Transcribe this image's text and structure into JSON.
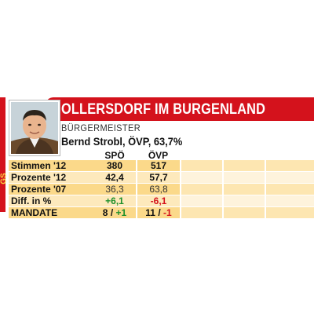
{
  "title": "OLLERSDORF IM BURGENLAND",
  "side_badge": "GS",
  "subtitle": "BÜRGERMEISTER",
  "mayor": "Bernd Strobl, ÖVP, 63,7%",
  "columns": [
    "SPÖ",
    "ÖVP"
  ],
  "rows": [
    {
      "label": "Stimmen '12",
      "spo": "380",
      "ovp": "517"
    },
    {
      "label": "Prozente '12",
      "spo": "42,4",
      "ovp": "57,7"
    },
    {
      "label": "Prozente '07",
      "spo": "36,3",
      "ovp": "63,8"
    },
    {
      "label": "Diff. in %",
      "spo": "+6,1",
      "ovp": "-6,1"
    }
  ],
  "mandate": {
    "label": "MANDATE",
    "spo": {
      "seats": "8",
      "change": "+1"
    },
    "ovp": {
      "seats": "11",
      "change": "-1"
    }
  },
  "colors": {
    "banner": "#d4121c",
    "row_dark": "#fbd98a",
    "row_light": "#fde9bc",
    "positive": "#1b8f2a",
    "negative": "#d4121c"
  }
}
